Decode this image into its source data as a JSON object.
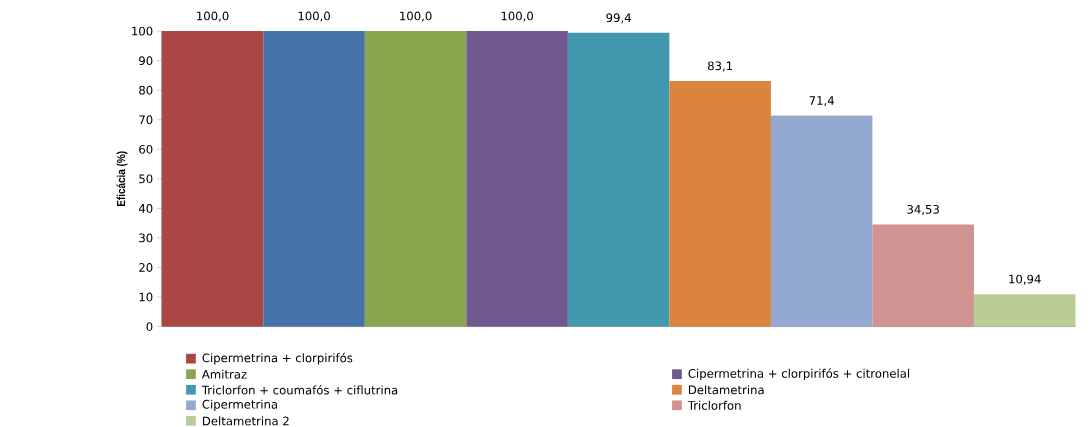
{
  "chart_data": {
    "type": "bar",
    "ylabel": "Eficácia (%)",
    "categories": [
      null
    ],
    "series": [
      {
        "name": "Cipermetrina + clorpirifós",
        "color": "#aa4643",
        "values": [
          100
        ],
        "value_labels": [
          "100,0"
        ]
      },
      {
        "color": "#4572a7",
        "values": [
          100
        ],
        "value_labels": [
          "100,0"
        ]
      },
      {
        "name": "Amitraz",
        "color": "#89a54e",
        "values": [
          100
        ],
        "value_labels": [
          "100,0"
        ]
      },
      {
        "name": "Cipermetrina + clorpirifós + citronelal",
        "color": "#71588f",
        "values": [
          100
        ],
        "value_labels": [
          "100,0"
        ]
      },
      {
        "name": "Triclorfon + coumafós + ciflutrina",
        "color": "#4198af",
        "values": [
          99.4
        ],
        "value_labels": [
          "99,4"
        ]
      },
      {
        "name": "Deltametrina",
        "color": "#db843d",
        "values": [
          83.1
        ],
        "value_labels": [
          "83,1"
        ]
      },
      {
        "name": "Cipermetrina",
        "color": "#93a9cf",
        "values": [
          71.4
        ],
        "value_labels": [
          "71,4"
        ]
      },
      {
        "name": "Triclorfon",
        "color": "#d19392",
        "values": [
          34.53
        ],
        "value_labels": [
          "34,53"
        ]
      },
      {
        "name": "Deltametrina 2",
        "color": "#b9cd96",
        "values": [
          10.94
        ],
        "value_labels": [
          "10,94"
        ]
      }
    ],
    "ylim": [
      0,
      100
    ],
    "yticks": [
      0,
      10,
      20,
      30,
      40,
      50,
      60,
      70,
      80,
      90,
      100
    ],
    "grid": false,
    "legend": "bottom"
  }
}
